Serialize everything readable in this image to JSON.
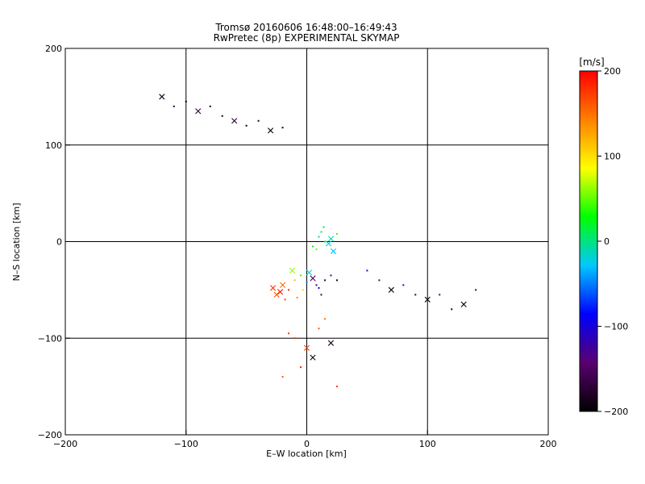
{
  "chart_data": {
    "type": "scatter",
    "title": "Tromsø 20160606 16:48:00–16:49:43",
    "subtitle": "RwPretec (8p) EXPERIMENTAL SKYMAP",
    "xlabel": "E–W location [km]",
    "ylabel": "N–S location [km]",
    "xlim": [
      -200,
      200
    ],
    "ylim": [
      -200,
      200
    ],
    "x_ticks": [
      -200,
      -100,
      0,
      100,
      200
    ],
    "y_ticks": [
      -200,
      -100,
      0,
      100,
      200
    ],
    "grid": true,
    "colorbar": {
      "label": "[m/s]",
      "range": [
        -200,
        200
      ],
      "ticks": [
        200,
        100,
        0,
        -100,
        -200
      ],
      "colors": [
        "#000000",
        "#5a0070",
        "#0000ff",
        "#00c8ff",
        "#00ff00",
        "#ffff00",
        "#ff8000",
        "#ff0000"
      ]
    },
    "marker_types": [
      "dot",
      "x"
    ],
    "series": [
      {
        "cluster": "main-blob",
        "x": [
          -20,
          -15,
          -10,
          -25,
          -5,
          0,
          5,
          10,
          -18,
          -22,
          15,
          20,
          -12,
          -8,
          8,
          2,
          -3,
          12,
          -28,
          25
        ],
        "y": [
          -45,
          -50,
          -40,
          -55,
          -35,
          -42,
          -38,
          -48,
          -60,
          -52,
          -40,
          -35,
          -30,
          -58,
          -45,
          -32,
          -50,
          -55,
          -48,
          -40
        ],
        "v": [
          150,
          180,
          120,
          160,
          40,
          -50,
          -150,
          -100,
          170,
          190,
          -180,
          -130,
          60,
          140,
          -120,
          -20,
          100,
          -160,
          175,
          -190
        ]
      },
      {
        "cluster": "green-center",
        "x": [
          10,
          15,
          20,
          5,
          12,
          18,
          25,
          8,
          22,
          14
        ],
        "y": [
          5,
          0,
          3,
          -5,
          10,
          -2,
          8,
          -8,
          -10,
          15
        ],
        "v": [
          0,
          20,
          -10,
          30,
          10,
          -20,
          40,
          50,
          -30,
          0
        ]
      },
      {
        "cluster": "south-plume",
        "x": [
          -10,
          0,
          10,
          -5,
          5,
          15,
          -15,
          20,
          -20,
          25
        ],
        "y": [
          -100,
          -110,
          -90,
          -130,
          -120,
          -80,
          -95,
          -105,
          -140,
          -150
        ],
        "v": [
          180,
          170,
          160,
          190,
          -190,
          150,
          175,
          -185,
          165,
          180
        ]
      },
      {
        "cluster": "north-west-x",
        "x": [
          -120,
          -110,
          -100,
          -90,
          -80,
          -70,
          -60,
          -50,
          -40,
          -30,
          -20
        ],
        "y": [
          150,
          140,
          145,
          135,
          140,
          130,
          125,
          120,
          125,
          115,
          118
        ],
        "v": [
          -190,
          -180,
          -200,
          -170,
          -185,
          -190,
          -175,
          -195,
          -180,
          -200,
          -190
        ]
      },
      {
        "cluster": "east-sparse",
        "x": [
          50,
          60,
          70,
          80,
          90,
          100,
          110,
          120,
          130,
          140
        ],
        "y": [
          -30,
          -40,
          -50,
          -45,
          -55,
          -60,
          -55,
          -70,
          -65,
          -50
        ],
        "v": [
          -100,
          -150,
          -190,
          -120,
          -170,
          -195,
          -140,
          -180,
          -200,
          -160
        ]
      }
    ]
  }
}
